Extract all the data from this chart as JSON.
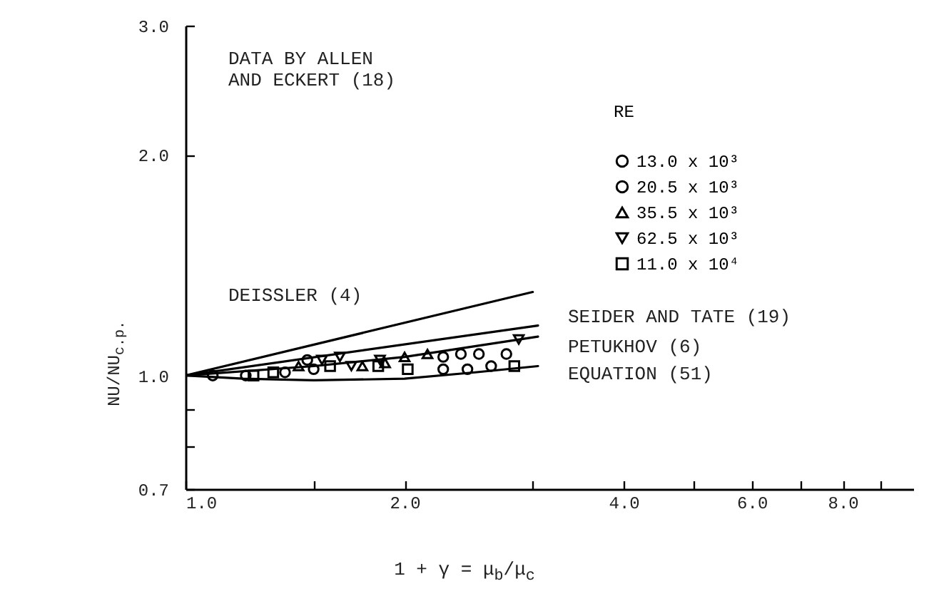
{
  "chart_data": {
    "type": "scatter",
    "xlabel": "1 + γ = μ$_{b}$/μ$_{c}$",
    "ylabel": "NU/NU$_{c.p.}$",
    "legend_title": "RE",
    "legend": "top right",
    "grid": false,
    "log": "xy",
    "xlim": [
      1,
      10
    ],
    "xticks": [
      {
        "value": 1,
        "label": "1.0"
      },
      {
        "value": 1.5,
        "label": null
      },
      {
        "value": 2,
        "label": "2.0"
      },
      {
        "value": 3,
        "label": null
      },
      {
        "value": 4,
        "label": "4.0"
      },
      {
        "value": 5,
        "label": null
      },
      {
        "value": 6,
        "label": "6.0"
      },
      {
        "value": 7,
        "label": null
      },
      {
        "value": 8,
        "label": "8.0"
      },
      {
        "value": 9,
        "label": null
      }
    ],
    "ylim": [
      0.7,
      3
    ],
    "yticks": [
      0.7,
      {
        "value": 0.8,
        "label": null
      },
      {
        "value": 0.9,
        "label": null
      },
      {
        "value": 1,
        "label": "1.0"
      },
      {
        "value": 2,
        "label": "2.0"
      },
      {
        "value": 3,
        "label": "3.0"
      }
    ],
    "annotations": [
      "DATA BY ALLEN\nAND ECKERT (18)",
      "DEISSLER (4)",
      "SEIDER AND TATE (19)",
      "PETUKHOV (6)",
      "EQUATION (51)"
    ],
    "series": [
      {
        "name": "13.0 x 10³",
        "marker": "circle",
        "color": "#000000",
        "x": [
          1.09,
          1.21,
          1.37,
          1.47,
          1.5,
          2.26,
          2.44,
          2.63
        ],
        "values": [
          1.0,
          1.0,
          1.01,
          1.05,
          1.02,
          1.02,
          1.02,
          1.03
        ]
      },
      {
        "name": "20.5 x 10³",
        "marker": "circle",
        "color": "#000000",
        "x": [
          2.26,
          2.39,
          2.53,
          2.76
        ],
        "values": [
          1.06,
          1.07,
          1.07,
          1.07
        ]
      },
      {
        "name": "35.5 x 10³",
        "marker": "triangle",
        "color": "#000000",
        "x": [
          1.43,
          1.75,
          1.88,
          2.0,
          2.15
        ],
        "values": [
          1.03,
          1.03,
          1.04,
          1.06,
          1.07
        ]
      },
      {
        "name": "62.5 x 10³",
        "marker": "triangle-down",
        "color": "#000000",
        "x": [
          1.54,
          1.63,
          1.69,
          1.85,
          2.87
        ],
        "values": [
          1.05,
          1.06,
          1.03,
          1.05,
          1.12
        ]
      },
      {
        "name": "11.0 x 10⁴",
        "marker": "square",
        "color": "#000000",
        "x": [
          1.24,
          1.32,
          1.58,
          1.84,
          2.02,
          2.83
        ],
        "values": [
          1.0,
          1.01,
          1.03,
          1.03,
          1.02,
          1.03
        ]
      },
      {
        "type": "line",
        "line_style": "solid",
        "color": "#000000",
        "x": [
          1,
          3.0
        ],
        "values": [
          1,
          1.3
        ]
      },
      {
        "type": "line",
        "line_style": "solid",
        "color": "#000000",
        "x": [
          1,
          3.05
        ],
        "values": [
          1,
          1.17
        ]
      },
      {
        "type": "line",
        "line_style": "solid",
        "color": "#000000",
        "x": [
          1,
          1.5,
          2,
          3.05
        ],
        "values": [
          1,
          1.03,
          1.06,
          1.13
        ]
      },
      {
        "type": "line",
        "line_style": "solid",
        "color": "#000000",
        "x": [
          1,
          1.2,
          1.5,
          2,
          2.5,
          3.05
        ],
        "values": [
          1,
          0.99,
          0.985,
          0.99,
          1.01,
          1.03
        ]
      }
    ]
  }
}
